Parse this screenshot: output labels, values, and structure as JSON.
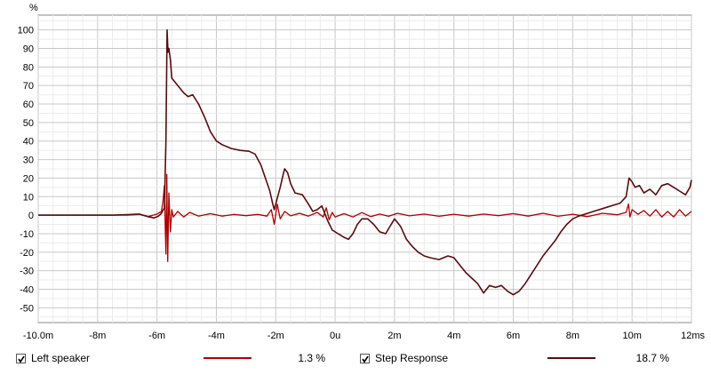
{
  "chart_data": {
    "type": "line",
    "ylabel": "%",
    "xunit": "ms",
    "xlim": [
      -10.0,
      12.0
    ],
    "ylim": [
      -58,
      108
    ],
    "grid": true,
    "yticks": [
      100,
      90,
      80,
      70,
      60,
      50,
      40,
      30,
      20,
      10,
      0,
      -10,
      -20,
      -30,
      -40,
      -50
    ],
    "xticks": [
      {
        "v": -10,
        "label": "-10.0m"
      },
      {
        "v": -8,
        "label": "-8m"
      },
      {
        "v": -6,
        "label": "-6m"
      },
      {
        "v": -4,
        "label": "-4m"
      },
      {
        "v": -2,
        "label": "-2m"
      },
      {
        "v": 0,
        "label": "0u"
      },
      {
        "v": 2,
        "label": "2m"
      },
      {
        "v": 4,
        "label": "4m"
      },
      {
        "v": 6,
        "label": "6m"
      },
      {
        "v": 8,
        "label": "8m"
      },
      {
        "v": 10,
        "label": "10m"
      },
      {
        "v": 12,
        "label": "12ms"
      }
    ],
    "series": [
      {
        "name": "Left speaker",
        "color": "#b00000",
        "value_label": "1.3 %",
        "points": [
          [
            -10,
            0
          ],
          [
            -7,
            0
          ],
          [
            -6.6,
            0.4
          ],
          [
            -6.3,
            -0.8
          ],
          [
            -6.0,
            0.6
          ],
          [
            -5.85,
            2
          ],
          [
            -5.8,
            7
          ],
          [
            -5.75,
            16
          ],
          [
            -5.72,
            -8
          ],
          [
            -5.7,
            -21
          ],
          [
            -5.67,
            22
          ],
          [
            -5.64,
            -25
          ],
          [
            -5.6,
            12
          ],
          [
            -5.55,
            -9
          ],
          [
            -5.5,
            3
          ],
          [
            -5.45,
            -1
          ],
          [
            -5.3,
            2
          ],
          [
            -5.1,
            -1
          ],
          [
            -4.9,
            1.5
          ],
          [
            -4.6,
            -0.5
          ],
          [
            -4.2,
            0.8
          ],
          [
            -3.8,
            -0.5
          ],
          [
            -3.4,
            0.4
          ],
          [
            -3.0,
            -0.3
          ],
          [
            -2.6,
            0.4
          ],
          [
            -2.3,
            -0.5
          ],
          [
            -2.15,
            3
          ],
          [
            -2.05,
            -5
          ],
          [
            -1.95,
            6
          ],
          [
            -1.85,
            -2
          ],
          [
            -1.7,
            2
          ],
          [
            -1.5,
            -0.4
          ],
          [
            -1.2,
            1
          ],
          [
            -0.9,
            -0.5
          ],
          [
            -0.6,
            1.5
          ],
          [
            -0.4,
            -1
          ],
          [
            -0.3,
            4
          ],
          [
            -0.2,
            -2.5
          ],
          [
            -0.1,
            1.5
          ],
          [
            0,
            -1
          ],
          [
            0.3,
            0.8
          ],
          [
            0.6,
            -1
          ],
          [
            0.9,
            1.4
          ],
          [
            1.2,
            -0.8
          ],
          [
            1.5,
            0.6
          ],
          [
            1.8,
            -0.6
          ],
          [
            2.1,
            1
          ],
          [
            2.5,
            -0.4
          ],
          [
            3.0,
            0.6
          ],
          [
            3.5,
            -0.6
          ],
          [
            4.0,
            0.5
          ],
          [
            4.5,
            -0.5
          ],
          [
            5.0,
            0.6
          ],
          [
            5.5,
            -0.3
          ],
          [
            6.0,
            0.8
          ],
          [
            6.5,
            -0.5
          ],
          [
            7.0,
            1
          ],
          [
            7.5,
            -0.6
          ],
          [
            8.0,
            0.5
          ],
          [
            8.5,
            -0.8
          ],
          [
            9.0,
            1
          ],
          [
            9.5,
            0.2
          ],
          [
            9.8,
            1.5
          ],
          [
            9.88,
            6
          ],
          [
            9.93,
            -1
          ],
          [
            10.0,
            3
          ],
          [
            10.2,
            0.5
          ],
          [
            10.4,
            2.5
          ],
          [
            10.6,
            -0.5
          ],
          [
            10.8,
            3
          ],
          [
            11.0,
            -1
          ],
          [
            11.2,
            2
          ],
          [
            11.4,
            -1
          ],
          [
            11.6,
            3
          ],
          [
            11.8,
            -0.5
          ],
          [
            12.0,
            2
          ]
        ]
      },
      {
        "name": "Step Response",
        "color": "#5a0c0c",
        "value_label": "18.7 %",
        "points": [
          [
            -10,
            0
          ],
          [
            -7.5,
            0
          ],
          [
            -7.0,
            0.3
          ],
          [
            -6.6,
            0.6
          ],
          [
            -6.3,
            -0.8
          ],
          [
            -6.1,
            -1.5
          ],
          [
            -5.95,
            -0.5
          ],
          [
            -5.85,
            1
          ],
          [
            -5.75,
            4
          ],
          [
            -5.7,
            40
          ],
          [
            -5.66,
            100
          ],
          [
            -5.63,
            88
          ],
          [
            -5.6,
            90
          ],
          [
            -5.55,
            84
          ],
          [
            -5.5,
            74
          ],
          [
            -5.3,
            70
          ],
          [
            -5.1,
            66
          ],
          [
            -4.95,
            64
          ],
          [
            -4.8,
            65
          ],
          [
            -4.6,
            60
          ],
          [
            -4.4,
            53
          ],
          [
            -4.2,
            45
          ],
          [
            -4.0,
            40
          ],
          [
            -3.8,
            38
          ],
          [
            -3.5,
            36
          ],
          [
            -3.2,
            35
          ],
          [
            -2.9,
            34.5
          ],
          [
            -2.7,
            33
          ],
          [
            -2.5,
            27
          ],
          [
            -2.35,
            20
          ],
          [
            -2.2,
            13
          ],
          [
            -2.1,
            6
          ],
          [
            -2.05,
            3
          ],
          [
            -1.95,
            9
          ],
          [
            -1.85,
            15
          ],
          [
            -1.75,
            22
          ],
          [
            -1.7,
            25
          ],
          [
            -1.6,
            23
          ],
          [
            -1.5,
            17
          ],
          [
            -1.35,
            12
          ],
          [
            -1.1,
            11
          ],
          [
            -0.9,
            6
          ],
          [
            -0.75,
            2
          ],
          [
            -0.6,
            3
          ],
          [
            -0.45,
            5
          ],
          [
            -0.35,
            1
          ],
          [
            -0.25,
            -3
          ],
          [
            -0.1,
            -8
          ],
          [
            0.1,
            -10
          ],
          [
            0.3,
            -12
          ],
          [
            0.45,
            -13
          ],
          [
            0.6,
            -10
          ],
          [
            0.75,
            -5
          ],
          [
            0.9,
            -2
          ],
          [
            1.1,
            -2
          ],
          [
            1.3,
            -5
          ],
          [
            1.5,
            -9
          ],
          [
            1.7,
            -10
          ],
          [
            1.85,
            -6
          ],
          [
            2.0,
            -2
          ],
          [
            2.2,
            -6
          ],
          [
            2.4,
            -13
          ],
          [
            2.6,
            -17
          ],
          [
            2.8,
            -20
          ],
          [
            3.0,
            -22
          ],
          [
            3.2,
            -23
          ],
          [
            3.5,
            -24
          ],
          [
            3.8,
            -22
          ],
          [
            4.0,
            -23
          ],
          [
            4.2,
            -27
          ],
          [
            4.4,
            -31
          ],
          [
            4.6,
            -34
          ],
          [
            4.8,
            -37
          ],
          [
            5.0,
            -42
          ],
          [
            5.2,
            -38
          ],
          [
            5.4,
            -39
          ],
          [
            5.6,
            -38
          ],
          [
            5.8,
            -41
          ],
          [
            6.0,
            -43
          ],
          [
            6.2,
            -41
          ],
          [
            6.4,
            -37
          ],
          [
            6.6,
            -32
          ],
          [
            6.8,
            -27
          ],
          [
            7.0,
            -22
          ],
          [
            7.2,
            -18
          ],
          [
            7.4,
            -14
          ],
          [
            7.6,
            -9
          ],
          [
            7.8,
            -5
          ],
          [
            8.0,
            -2
          ],
          [
            8.2,
            -0.5
          ],
          [
            8.4,
            0.5
          ],
          [
            8.6,
            1.5
          ],
          [
            8.8,
            2.5
          ],
          [
            9.0,
            3.5
          ],
          [
            9.2,
            4.5
          ],
          [
            9.4,
            5.5
          ],
          [
            9.6,
            6.5
          ],
          [
            9.8,
            10
          ],
          [
            9.9,
            20
          ],
          [
            10.0,
            18
          ],
          [
            10.1,
            15
          ],
          [
            10.25,
            16
          ],
          [
            10.4,
            12
          ],
          [
            10.6,
            14
          ],
          [
            10.8,
            11
          ],
          [
            11.0,
            16
          ],
          [
            11.2,
            17
          ],
          [
            11.4,
            15
          ],
          [
            11.6,
            13
          ],
          [
            11.8,
            11
          ],
          [
            11.95,
            15
          ],
          [
            12.0,
            19
          ]
        ]
      }
    ]
  }
}
